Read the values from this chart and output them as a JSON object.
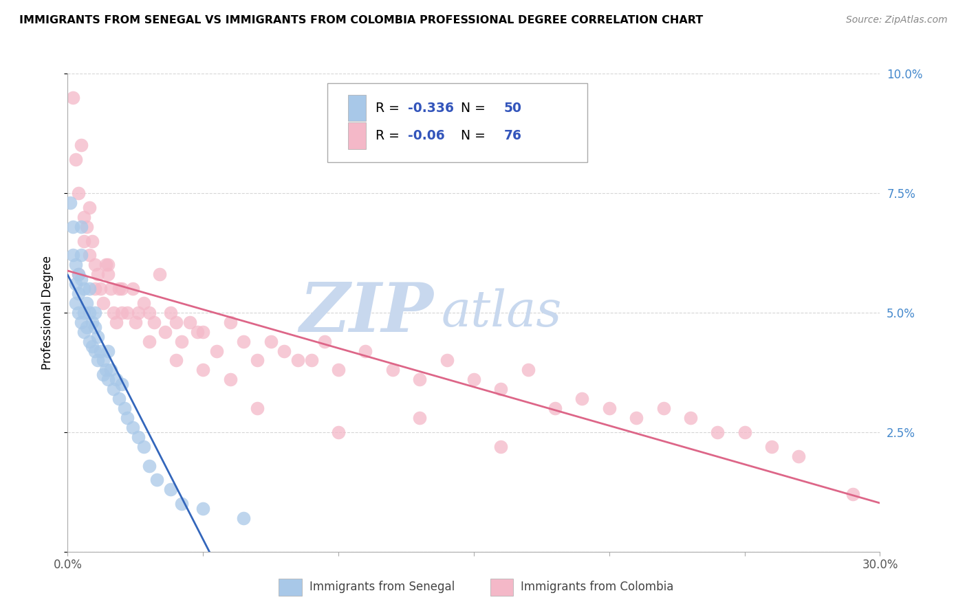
{
  "title": "IMMIGRANTS FROM SENEGAL VS IMMIGRANTS FROM COLOMBIA PROFESSIONAL DEGREE CORRELATION CHART",
  "source": "Source: ZipAtlas.com",
  "ylabel": "Professional Degree",
  "xlim": [
    0.0,
    0.3
  ],
  "ylim": [
    0.0,
    0.1
  ],
  "xticks": [
    0.0,
    0.05,
    0.1,
    0.15,
    0.2,
    0.25,
    0.3
  ],
  "xticklabels": [
    "0.0%",
    "",
    "",
    "",
    "",
    "",
    "30.0%"
  ],
  "yticks": [
    0.0,
    0.025,
    0.05,
    0.075,
    0.1
  ],
  "yticklabels_right": [
    "",
    "2.5%",
    "5.0%",
    "7.5%",
    "10.0%"
  ],
  "senegal_color": "#a8c8e8",
  "colombia_color": "#f4b8c8",
  "senegal_R": -0.336,
  "senegal_N": 50,
  "colombia_R": -0.06,
  "colombia_N": 76,
  "trend_senegal_color": "#3366bb",
  "trend_colombia_color": "#dd6688",
  "watermark_zip": "ZIP",
  "watermark_atlas": "atlas",
  "watermark_color": "#c8d8ee",
  "legend_label_senegal": "Immigrants from Senegal",
  "legend_label_colombia": "Immigrants from Colombia",
  "senegal_x": [
    0.001,
    0.002,
    0.002,
    0.003,
    0.003,
    0.003,
    0.004,
    0.004,
    0.004,
    0.005,
    0.005,
    0.005,
    0.005,
    0.006,
    0.006,
    0.006,
    0.007,
    0.007,
    0.008,
    0.008,
    0.008,
    0.009,
    0.009,
    0.01,
    0.01,
    0.01,
    0.011,
    0.011,
    0.012,
    0.013,
    0.013,
    0.014,
    0.015,
    0.015,
    0.016,
    0.017,
    0.018,
    0.019,
    0.02,
    0.021,
    0.022,
    0.024,
    0.026,
    0.028,
    0.03,
    0.033,
    0.038,
    0.042,
    0.05,
    0.065
  ],
  "senegal_y": [
    0.073,
    0.068,
    0.062,
    0.06,
    0.056,
    0.052,
    0.058,
    0.054,
    0.05,
    0.068,
    0.062,
    0.057,
    0.048,
    0.055,
    0.05,
    0.046,
    0.052,
    0.047,
    0.055,
    0.05,
    0.044,
    0.048,
    0.043,
    0.05,
    0.047,
    0.042,
    0.045,
    0.04,
    0.042,
    0.04,
    0.037,
    0.038,
    0.042,
    0.036,
    0.038,
    0.034,
    0.036,
    0.032,
    0.035,
    0.03,
    0.028,
    0.026,
    0.024,
    0.022,
    0.018,
    0.015,
    0.013,
    0.01,
    0.009,
    0.007
  ],
  "colombia_x": [
    0.002,
    0.003,
    0.004,
    0.005,
    0.006,
    0.007,
    0.008,
    0.009,
    0.01,
    0.011,
    0.012,
    0.013,
    0.014,
    0.015,
    0.016,
    0.017,
    0.018,
    0.019,
    0.02,
    0.022,
    0.024,
    0.026,
    0.028,
    0.03,
    0.032,
    0.034,
    0.036,
    0.038,
    0.04,
    0.042,
    0.045,
    0.048,
    0.05,
    0.055,
    0.06,
    0.065,
    0.07,
    0.075,
    0.08,
    0.085,
    0.09,
    0.095,
    0.1,
    0.11,
    0.12,
    0.13,
    0.14,
    0.15,
    0.16,
    0.17,
    0.18,
    0.19,
    0.2,
    0.21,
    0.22,
    0.23,
    0.24,
    0.25,
    0.26,
    0.27,
    0.004,
    0.006,
    0.008,
    0.01,
    0.015,
    0.02,
    0.025,
    0.03,
    0.04,
    0.05,
    0.06,
    0.07,
    0.1,
    0.13,
    0.16,
    0.29
  ],
  "colombia_y": [
    0.095,
    0.082,
    0.075,
    0.085,
    0.07,
    0.068,
    0.072,
    0.065,
    0.06,
    0.058,
    0.055,
    0.052,
    0.06,
    0.058,
    0.055,
    0.05,
    0.048,
    0.055,
    0.055,
    0.05,
    0.055,
    0.05,
    0.052,
    0.05,
    0.048,
    0.058,
    0.046,
    0.05,
    0.048,
    0.044,
    0.048,
    0.046,
    0.046,
    0.042,
    0.048,
    0.044,
    0.04,
    0.044,
    0.042,
    0.04,
    0.04,
    0.044,
    0.038,
    0.042,
    0.038,
    0.036,
    0.04,
    0.036,
    0.034,
    0.038,
    0.03,
    0.032,
    0.03,
    0.028,
    0.03,
    0.028,
    0.025,
    0.025,
    0.022,
    0.02,
    0.058,
    0.065,
    0.062,
    0.055,
    0.06,
    0.05,
    0.048,
    0.044,
    0.04,
    0.038,
    0.036,
    0.03,
    0.025,
    0.028,
    0.022,
    0.012
  ]
}
